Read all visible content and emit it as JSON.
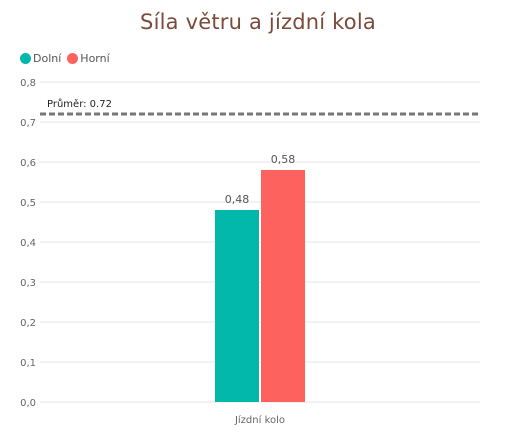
{
  "chart_data": {
    "type": "bar",
    "title": "Síla větru a jízdní kola",
    "categories": [
      "Jízdní kolo"
    ],
    "series": [
      {
        "name": "Dolní",
        "values": [
          0.48
        ],
        "color": "#01b8aa"
      },
      {
        "name": "Horní",
        "values": [
          0.58
        ],
        "color": "#fd625e"
      }
    ],
    "data_labels": [
      "0,48",
      "0,58"
    ],
    "ylim": [
      0,
      0.8
    ],
    "yticks": [
      "0,0",
      "0,1",
      "0,2",
      "0,3",
      "0,4",
      "0,5",
      "0,6",
      "0,7",
      "0,8"
    ],
    "average_line": {
      "value": 0.72,
      "label": "Průměr: 0.72",
      "color": "#777777"
    },
    "legend_position": "top-left",
    "grid": true
  }
}
